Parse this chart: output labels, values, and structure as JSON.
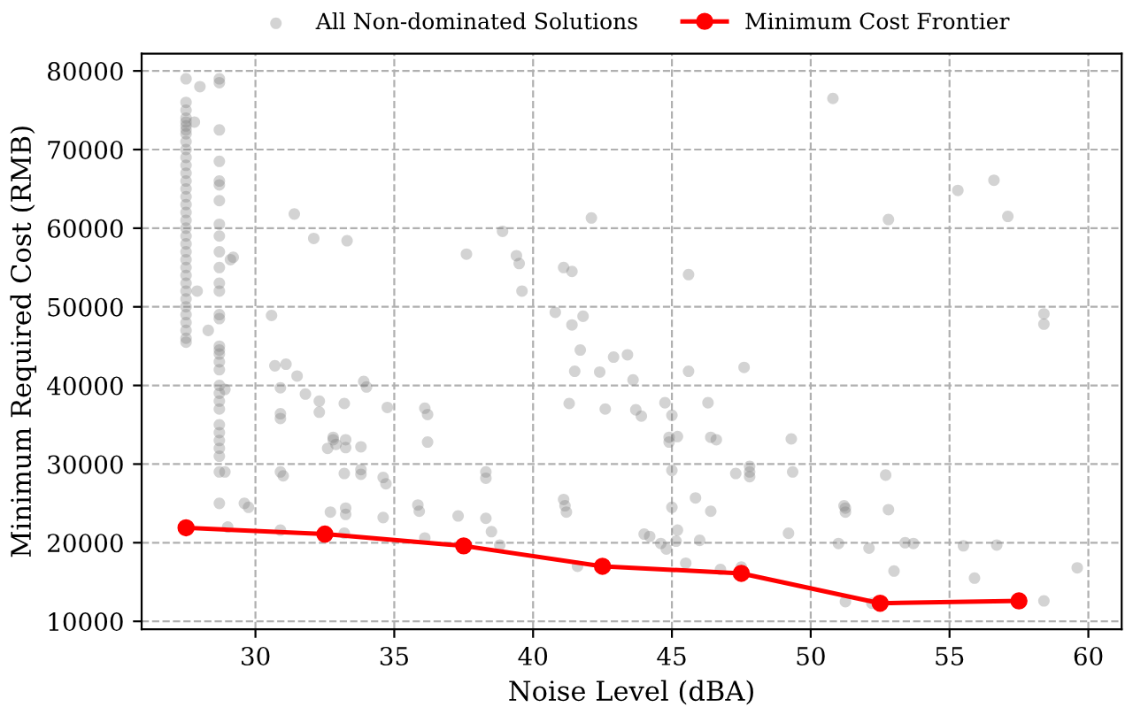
{
  "chart_data": {
    "type": "scatter",
    "xlabel": "Noise Level (dBA)",
    "ylabel": "Minimum Required Cost (RMB)",
    "xlim": [
      25.9,
      61.2
    ],
    "ylim": [
      9000,
      82200
    ],
    "xticks": [
      30,
      35,
      40,
      45,
      50,
      55,
      60
    ],
    "yticks": [
      10000,
      20000,
      30000,
      40000,
      50000,
      60000,
      70000,
      80000
    ],
    "grid": true,
    "legend": "top",
    "series": [
      {
        "name": "All Non-dominated Solutions",
        "marker": "circle",
        "color": "#808080",
        "x": [
          27.5,
          27.5,
          27.5,
          27.5,
          27.5,
          27.5,
          27.5,
          27.5,
          27.5,
          27.5,
          27.5,
          27.5,
          27.5,
          27.5,
          27.5,
          27.5,
          27.5,
          27.5,
          27.5,
          27.5,
          27.5,
          27.5,
          27.5,
          27.5,
          27.5,
          27.5,
          27.5,
          27.5,
          27.5,
          27.5,
          27.5,
          27.5,
          27.5,
          27.5,
          27.5,
          27.8,
          28.0,
          27.9,
          28.3,
          28.7,
          28.7,
          28.7,
          28.7,
          28.7,
          28.7,
          28.7,
          28.7,
          28.7,
          28.7,
          28.7,
          28.7,
          28.7,
          28.7,
          28.7,
          28.7,
          28.7,
          28.7,
          28.7,
          28.7,
          28.7,
          28.7,
          28.7,
          28.7,
          28.7,
          28.7,
          28.7,
          28.7,
          28.7,
          28.7,
          28.7,
          28.9,
          28.9,
          29.1,
          29.0,
          30.58,
          30.7,
          31.1,
          31.5,
          31.8,
          30.9,
          30.9,
          30.9,
          32.3,
          32.3,
          33.2,
          33.9,
          34.0,
          34.75,
          36.1,
          36.2,
          36.2,
          32.8,
          32.8,
          32.6,
          32.9,
          33.25,
          33.25,
          33.8,
          30.9,
          31.0,
          33.2,
          33.8,
          33.8,
          34.6,
          34.7,
          29.6,
          29.75,
          32.7,
          33.25,
          33.25,
          34.6,
          35.85,
          35.9,
          37.3,
          30.9,
          33.2,
          36.1,
          31.4,
          32.1,
          33.3,
          37.6,
          29.2,
          42.1,
          38.9,
          39.4,
          39.5,
          39.6,
          41.1,
          41.4,
          45.6,
          40.8,
          41.8,
          41.4,
          41.7,
          42.9,
          43.4,
          41.5,
          42.4,
          45.6,
          43.6,
          47.6,
          41.3,
          42.6,
          43.7,
          43.9,
          44.75,
          45.0,
          46.3,
          44.9,
          44.9,
          45.2,
          46.4,
          46.6,
          47.8,
          47.8,
          47.8,
          47.3,
          49.3,
          49.35,
          45.0,
          45.85,
          45.0,
          46.4,
          45.2,
          45.15,
          46.0,
          44.0,
          44.2,
          44.6,
          44.8,
          45.5,
          46.75,
          47.5,
          49.2,
          41.6,
          41.1,
          41.15,
          41.2,
          38.3,
          38.3,
          38.3,
          38.5,
          38.8,
          50.8,
          55.3,
          56.6,
          57.1,
          52.8,
          58.4,
          58.4,
          52.7,
          51.2,
          51.25,
          51.25,
          52.8,
          51.0,
          52.1,
          53.4,
          53.7,
          53.0,
          51.25,
          52.2,
          55.5,
          56.7,
          55.9,
          58.4,
          59.6
        ],
        "values": [
          79000,
          76000,
          75000,
          74000,
          73500,
          73000,
          72500,
          72000,
          71000,
          70000,
          69000,
          68000,
          67000,
          66000,
          65000,
          64000,
          63000,
          62000,
          61000,
          60000,
          59000,
          58000,
          57000,
          56000,
          55000,
          54000,
          53000,
          52000,
          51000,
          50000,
          49000,
          48000,
          47000,
          46000,
          45500,
          73500,
          78000,
          52000,
          47000,
          79000,
          78500,
          72500,
          68500,
          66000,
          65500,
          63500,
          60500,
          59000,
          57000,
          55000,
          53000,
          52000,
          49000,
          48500,
          45000,
          44500,
          44000,
          43000,
          42000,
          40000,
          39000,
          38000,
          37000,
          35000,
          34000,
          33000,
          32000,
          31000,
          29000,
          25000,
          39500,
          29000,
          56000,
          22000,
          48900,
          42500,
          42700,
          41200,
          38900,
          39700,
          36400,
          35800,
          38000,
          36600,
          37700,
          40500,
          39800,
          37200,
          37100,
          36300,
          32800,
          33400,
          33100,
          32000,
          32500,
          33100,
          32100,
          32200,
          29000,
          28500,
          28800,
          29300,
          28700,
          28300,
          27500,
          25000,
          24500,
          23900,
          24400,
          23600,
          23200,
          24800,
          24000,
          23400,
          21600,
          21200,
          20600,
          61800,
          58700,
          58400,
          56700,
          56300,
          61300,
          59600,
          56500,
          55500,
          52000,
          55000,
          54500,
          54100,
          49300,
          48800,
          47700,
          44500,
          43600,
          43900,
          41800,
          41700,
          41800,
          40700,
          42300,
          37700,
          37000,
          36900,
          36100,
          37800,
          36200,
          37800,
          33400,
          32800,
          33500,
          33400,
          33100,
          29700,
          29000,
          28400,
          28800,
          33200,
          29000,
          29200,
          25700,
          24500,
          24000,
          21600,
          20200,
          20300,
          21100,
          20800,
          19900,
          19200,
          17400,
          16600,
          16900,
          21200,
          17000,
          25500,
          24700,
          23900,
          29000,
          28200,
          23100,
          21400,
          19700,
          76500,
          64800,
          66100,
          61500,
          61100,
          49100,
          47800,
          28600,
          24700,
          24400,
          23900,
          24200,
          19900,
          19300,
          20000,
          19900,
          16400,
          12500,
          12300,
          19600,
          19700,
          15500,
          12600,
          16800
        ]
      },
      {
        "name": "Minimum Cost Frontier",
        "type": "line",
        "marker": "circle",
        "line_style": "solid",
        "color": "#ff0000",
        "x": [
          27.5,
          32.5,
          37.5,
          42.5,
          47.5,
          52.5,
          57.5
        ],
        "values": [
          21900,
          21100,
          19600,
          17000,
          16100,
          12300,
          12600
        ]
      }
    ]
  }
}
